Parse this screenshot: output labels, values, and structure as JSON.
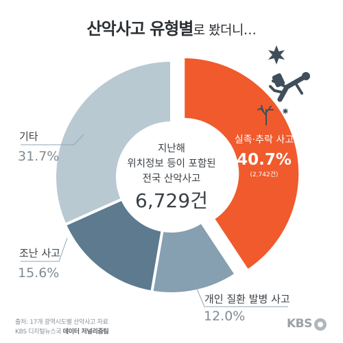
{
  "title": {
    "bold": "산악사고 유형별",
    "light": "로 봤더니…"
  },
  "center": {
    "line1": "지난해",
    "line2": "위치정보 등이 포함된",
    "line3": "전국 산악사고",
    "total": "6,729건"
  },
  "source": {
    "line1": "출처: 17개 광역시도별 산악사고 자료",
    "line2_prefix": "KBS 디지털뉴스국 ",
    "line2_bold": "데이터 저널리즘팀"
  },
  "brand": "KBS",
  "colors": {
    "fall": "#f05a2c",
    "etc": "#b9c9d2",
    "lost": "#5d7a8e",
    "illness": "#869fb1",
    "leader": "#8fa5b3",
    "title": "#2b2f33"
  },
  "chart_data": {
    "type": "pie",
    "subtype": "donut",
    "start_angle_deg": 0,
    "slices": [
      {
        "key": "fall",
        "label": "실족·추락 사고",
        "percent_label": "40.7%",
        "count_label": "(2,742건)",
        "value": 40.7,
        "exploded": true
      },
      {
        "key": "illness",
        "label": "개인 질환 발병 사고",
        "percent_label": "12.0%",
        "value": 12.0
      },
      {
        "key": "lost",
        "label": "조난 사고",
        "percent_label": "15.6%",
        "value": 15.6
      },
      {
        "key": "etc",
        "label": "기타",
        "percent_label": "31.7%",
        "value": 31.7
      }
    ]
  }
}
